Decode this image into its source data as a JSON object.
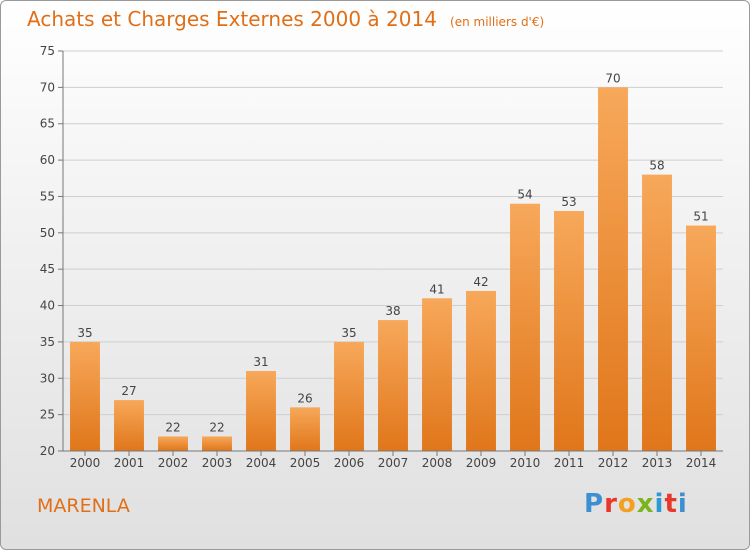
{
  "header": {
    "title": "Achats et Charges Externes 2000 à 2014",
    "subtitle": "(en milliers d'€)"
  },
  "footer": {
    "commune": "MARENLA",
    "logo_text": "Proxiti",
    "logo_colors": [
      "#3c8fd0",
      "#e8382b",
      "#f2a01e",
      "#7ab51d",
      "#2d9ad8",
      "#e8382b",
      "#3c8fd0"
    ]
  },
  "chart_data": {
    "type": "bar",
    "title": "Achats et Charges Externes 2000 à 2014",
    "subtitle": "(en milliers d'€)",
    "categories": [
      "2000",
      "2001",
      "2002",
      "2003",
      "2004",
      "2005",
      "2006",
      "2007",
      "2008",
      "2009",
      "2010",
      "2011",
      "2012",
      "2013",
      "2014"
    ],
    "values": [
      35,
      27,
      22,
      22,
      31,
      26,
      35,
      38,
      41,
      42,
      54,
      53,
      70,
      58,
      51
    ],
    "ylim": [
      20,
      75
    ],
    "yticks": [
      20,
      25,
      30,
      35,
      40,
      45,
      50,
      55,
      60,
      65,
      70,
      75
    ],
    "grid": true,
    "bar_color": "#f08a2a",
    "bar_color_light": "#f7a85a",
    "data_labels": true
  }
}
